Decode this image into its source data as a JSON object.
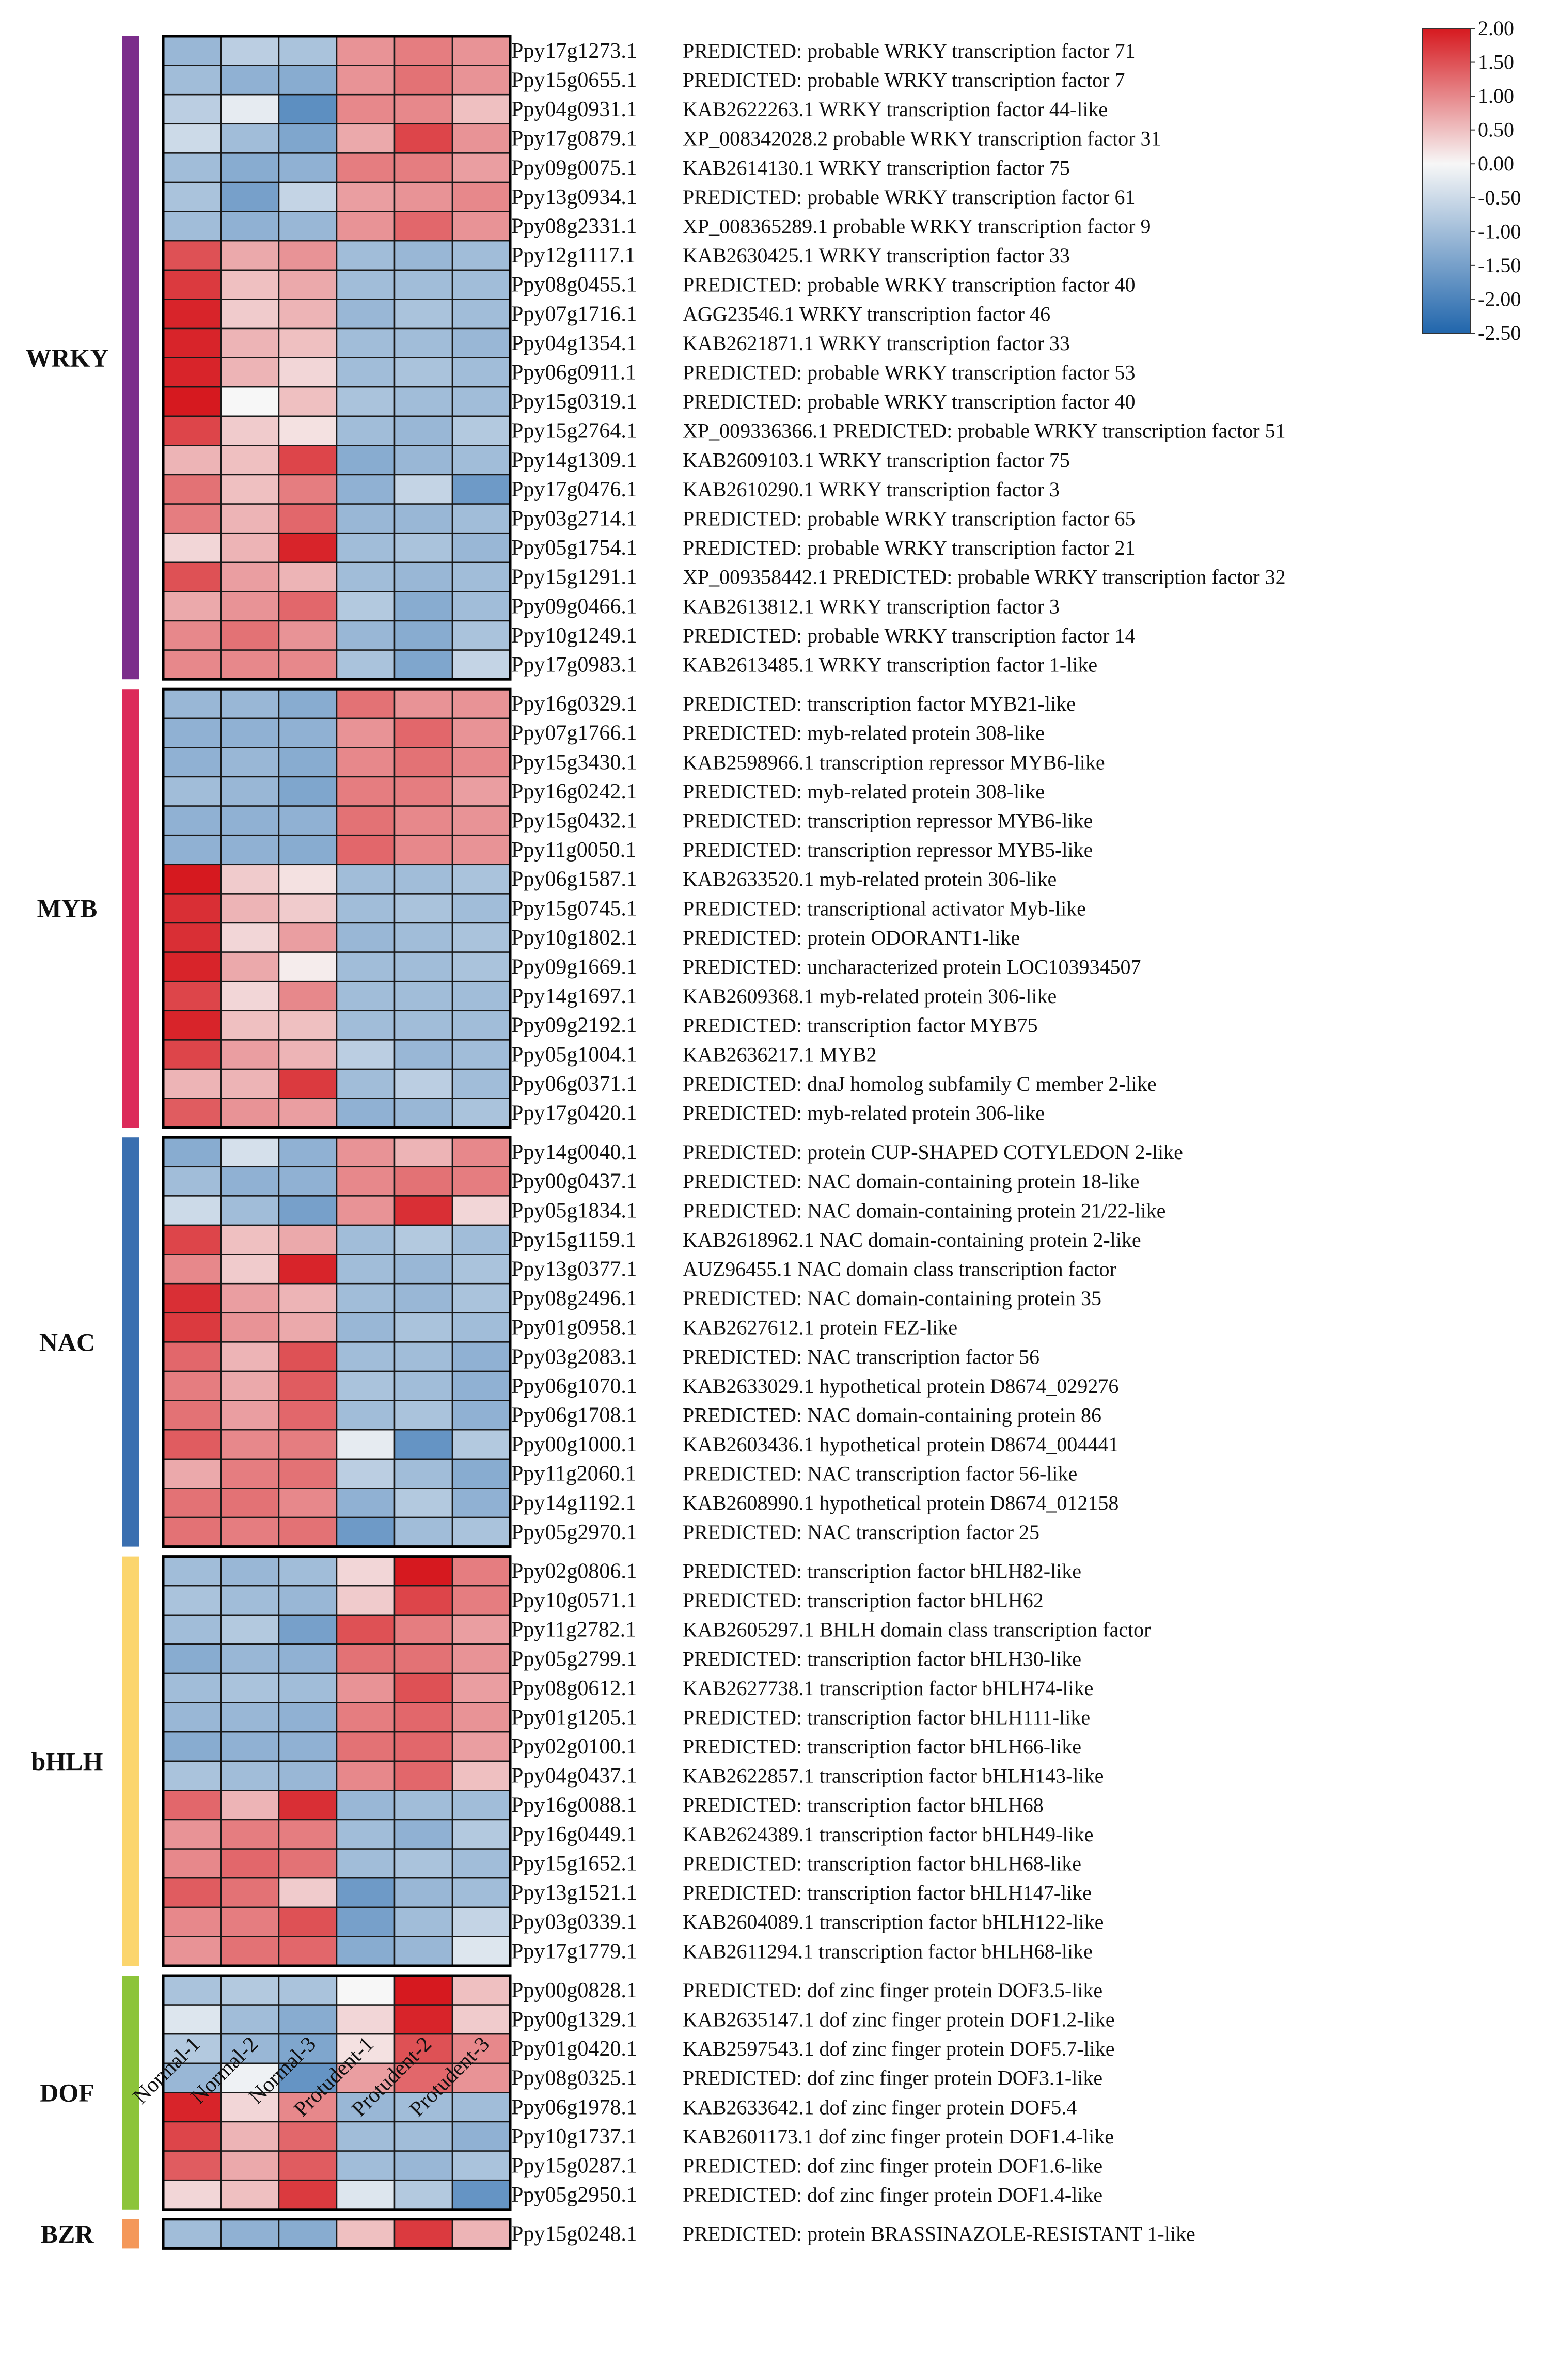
{
  "chart_data": {
    "type": "heatmap",
    "title": "",
    "columns": [
      "Normal-1",
      "Normal-2",
      "Normal-3",
      "Protudent-1",
      "Protudent-2",
      "Protudent-3"
    ],
    "colorbar": {
      "min": -2.5,
      "max": 2.0,
      "ticks": [
        "2.00",
        "1.50",
        "1.00",
        "0.50",
        "0.00",
        "-0.50",
        "-1.00",
        "-1.50",
        "-2.00",
        "-2.50"
      ],
      "colors": {
        "low": "#2166ac",
        "mid": "#f7f7f7",
        "high": "#d6191f"
      }
    },
    "families": [
      {
        "name": "WRKY",
        "color": "#7b2d8b",
        "start": 0,
        "count": 22
      },
      {
        "name": "MYB",
        "color": "#dc2a5a",
        "start": 22,
        "count": 15
      },
      {
        "name": "NAC",
        "color": "#3a6fb0",
        "start": 37,
        "count": 14
      },
      {
        "name": "bHLH",
        "color": "#fbd56d",
        "start": 51,
        "count": 14
      },
      {
        "name": "DOF",
        "color": "#8cc43a",
        "start": 65,
        "count": 8
      },
      {
        "name": "BZR",
        "color": "#f4985a",
        "start": 73,
        "count": 1
      }
    ],
    "rows": [
      {
        "id": "Ppy17g1273.1",
        "desc": "PREDICTED: probable WRKY transcription factor 71",
        "values": [
          -1.1,
          -0.7,
          -0.9,
          0.9,
          1.1,
          0.9
        ]
      },
      {
        "id": "Ppy15g0655.1",
        "desc": "PREDICTED: probable WRKY transcription factor 7",
        "values": [
          -1.0,
          -1.2,
          -1.3,
          0.9,
          1.2,
          0.9
        ]
      },
      {
        "id": "Ppy04g0931.1",
        "desc": "KAB2622263.1 WRKY transcription factor 44-like",
        "values": [
          -0.7,
          -0.2,
          -1.8,
          1.0,
          1.0,
          0.5
        ]
      },
      {
        "id": "Ppy17g0879.1",
        "desc": "XP_008342028.2 probable WRKY transcription factor 31",
        "values": [
          -0.5,
          -1.0,
          -1.4,
          0.7,
          1.6,
          0.9
        ]
      },
      {
        "id": "Ppy09g0075.1",
        "desc": "KAB2614130.1 WRKY transcription factor 75",
        "values": [
          -1.0,
          -1.3,
          -1.2,
          1.1,
          1.1,
          0.8
        ]
      },
      {
        "id": "Ppy13g0934.1",
        "desc": "PREDICTED: probable WRKY transcription factor 61",
        "values": [
          -0.9,
          -1.5,
          -0.6,
          0.8,
          0.9,
          1.0
        ]
      },
      {
        "id": "Ppy08g2331.1",
        "desc": "XP_008365289.1 probable WRKY transcription factor 9",
        "values": [
          -1.0,
          -1.2,
          -1.1,
          0.9,
          1.3,
          0.9
        ]
      },
      {
        "id": "Ppy12g1117.1",
        "desc": "KAB2630425.1 WRKY transcription factor 33",
        "values": [
          1.5,
          0.7,
          0.9,
          -1.0,
          -1.1,
          -1.0
        ]
      },
      {
        "id": "Ppy08g0455.1",
        "desc": "PREDICTED: probable WRKY transcription factor 40",
        "values": [
          1.7,
          0.5,
          0.7,
          -1.0,
          -1.0,
          -1.0
        ]
      },
      {
        "id": "Ppy07g1716.1",
        "desc": "AGG23546.1 WRKY transcription factor 46",
        "values": [
          1.9,
          0.4,
          0.6,
          -1.1,
          -0.9,
          -1.0
        ]
      },
      {
        "id": "Ppy04g1354.1",
        "desc": "KAB2621871.1 WRKY transcription factor 33",
        "values": [
          1.9,
          0.6,
          0.5,
          -1.0,
          -1.0,
          -1.1
        ]
      },
      {
        "id": "Ppy06g0911.1",
        "desc": "PREDICTED: probable WRKY transcription factor 53",
        "values": [
          1.9,
          0.6,
          0.3,
          -1.0,
          -0.9,
          -1.0
        ]
      },
      {
        "id": "Ppy15g0319.1",
        "desc": "PREDICTED: probable WRKY transcription factor 40",
        "values": [
          2.0,
          0.0,
          0.5,
          -0.9,
          -1.0,
          -1.0
        ]
      },
      {
        "id": "Ppy15g2764.1",
        "desc": "XP_009336366.1 PREDICTED: probable WRKY transcription factor 51",
        "values": [
          1.6,
          0.4,
          0.2,
          -1.0,
          -1.1,
          -0.8
        ]
      },
      {
        "id": "Ppy14g1309.1",
        "desc": "KAB2609103.1 WRKY transcription factor 75",
        "values": [
          0.6,
          0.5,
          1.6,
          -1.3,
          -1.1,
          -1.0
        ]
      },
      {
        "id": "Ppy17g0476.1",
        "desc": "KAB2610290.1 WRKY transcription factor 3",
        "values": [
          1.2,
          0.5,
          1.1,
          -1.2,
          -0.6,
          -1.6
        ]
      },
      {
        "id": "Ppy03g2714.1",
        "desc": "PREDICTED: probable WRKY transcription factor 65",
        "values": [
          1.1,
          0.6,
          1.3,
          -1.1,
          -1.1,
          -1.0
        ]
      },
      {
        "id": "Ppy05g1754.1",
        "desc": "PREDICTED: probable WRKY transcription factor 21",
        "values": [
          0.3,
          0.6,
          1.9,
          -1.0,
          -0.9,
          -1.1
        ]
      },
      {
        "id": "Ppy15g1291.1",
        "desc": "XP_009358442.1 PREDICTED: probable WRKY transcription factor 32",
        "values": [
          1.5,
          0.8,
          0.6,
          -1.0,
          -1.1,
          -1.0
        ]
      },
      {
        "id": "Ppy09g0466.1",
        "desc": "KAB2613812.1 WRKY transcription factor 3",
        "values": [
          0.7,
          0.9,
          1.3,
          -0.8,
          -1.3,
          -1.0
        ]
      },
      {
        "id": "Ppy10g1249.1",
        "desc": "PREDICTED: probable WRKY transcription factor 14",
        "values": [
          1.0,
          1.2,
          0.9,
          -1.1,
          -1.3,
          -0.9
        ]
      },
      {
        "id": "Ppy17g0983.1",
        "desc": "KAB2613485.1 WRKY transcription factor 1-like",
        "values": [
          1.0,
          1.0,
          1.0,
          -0.9,
          -1.4,
          -0.6
        ]
      },
      {
        "id": "Ppy16g0329.1",
        "desc": "PREDICTED: transcription factor MYB21-like",
        "values": [
          -1.1,
          -1.1,
          -1.3,
          1.2,
          0.9,
          0.9
        ]
      },
      {
        "id": "Ppy07g1766.1",
        "desc": "PREDICTED: myb-related protein 308-like",
        "values": [
          -1.2,
          -1.2,
          -1.2,
          0.9,
          1.3,
          0.9
        ]
      },
      {
        "id": "Ppy15g3430.1",
        "desc": "KAB2598966.1 transcription repressor MYB6-like",
        "values": [
          -1.2,
          -1.1,
          -1.3,
          1.0,
          1.2,
          1.0
        ]
      },
      {
        "id": "Ppy16g0242.1",
        "desc": "PREDICTED: myb-related protein 308-like",
        "values": [
          -1.0,
          -1.1,
          -1.4,
          1.1,
          1.1,
          0.8
        ]
      },
      {
        "id": "Ppy15g0432.1",
        "desc": "PREDICTED: transcription repressor MYB6-like",
        "values": [
          -1.2,
          -1.2,
          -1.2,
          1.2,
          1.0,
          0.9
        ]
      },
      {
        "id": "Ppy11g0050.1",
        "desc": "PREDICTED: transcription repressor MYB5-like",
        "values": [
          -1.2,
          -1.2,
          -1.3,
          1.3,
          1.0,
          0.9
        ]
      },
      {
        "id": "Ppy06g1587.1",
        "desc": "KAB2633520.1 myb-related protein 306-like",
        "values": [
          2.0,
          0.4,
          0.2,
          -1.0,
          -1.0,
          -0.9
        ]
      },
      {
        "id": "Ppy15g0745.1",
        "desc": "PREDICTED: transcriptional activator Myb-like",
        "values": [
          1.8,
          0.6,
          0.4,
          -1.0,
          -0.9,
          -1.0
        ]
      },
      {
        "id": "Ppy10g1802.1",
        "desc": "PREDICTED: protein ODORANT1-like",
        "values": [
          1.8,
          0.3,
          0.8,
          -1.1,
          -1.0,
          -0.9
        ]
      },
      {
        "id": "Ppy09g1669.1",
        "desc": "PREDICTED: uncharacterized protein LOC103934507",
        "values": [
          1.9,
          0.7,
          0.1,
          -1.0,
          -1.0,
          -0.9
        ]
      },
      {
        "id": "Ppy14g1697.1",
        "desc": "KAB2609368.1 myb-related protein 306-like",
        "values": [
          1.6,
          0.3,
          1.0,
          -1.0,
          -1.0,
          -1.0
        ]
      },
      {
        "id": "Ppy09g2192.1",
        "desc": "PREDICTED: transcription factor MYB75",
        "values": [
          1.9,
          0.5,
          0.5,
          -1.0,
          -1.0,
          -1.0
        ]
      },
      {
        "id": "Ppy05g1004.1",
        "desc": "KAB2636217.1 MYB2",
        "values": [
          1.6,
          0.8,
          0.6,
          -0.7,
          -1.1,
          -1.0
        ]
      },
      {
        "id": "Ppy06g0371.1",
        "desc": "PREDICTED: dnaJ homolog subfamily C member 2-like",
        "values": [
          0.6,
          0.6,
          1.7,
          -1.0,
          -0.7,
          -1.0
        ]
      },
      {
        "id": "Ppy17g0420.1",
        "desc": "PREDICTED: myb-related protein 306-like",
        "values": [
          1.4,
          0.9,
          0.8,
          -1.2,
          -1.1,
          -0.9
        ]
      },
      {
        "id": "Ppy14g0040.1",
        "desc": "PREDICTED: protein CUP-SHAPED COTYLEDON 2-like",
        "values": [
          -1.3,
          -0.4,
          -1.2,
          0.9,
          0.6,
          1.0
        ]
      },
      {
        "id": "Ppy00g0437.1",
        "desc": "PREDICTED: NAC domain-containing protein 18-like",
        "values": [
          -1.0,
          -1.2,
          -1.2,
          1.0,
          1.2,
          1.1
        ]
      },
      {
        "id": "Ppy05g1834.1",
        "desc": "PREDICTED: NAC domain-containing protein 21/22-like",
        "values": [
          -0.5,
          -1.0,
          -1.5,
          0.9,
          1.8,
          0.3
        ]
      },
      {
        "id": "Ppy15g1159.1",
        "desc": "KAB2618962.1 NAC domain-containing protein 2-like",
        "values": [
          1.6,
          0.5,
          0.7,
          -1.0,
          -0.8,
          -1.0
        ]
      },
      {
        "id": "Ppy13g0377.1",
        "desc": "AUZ96455.1 NAC domain class transcription factor",
        "values": [
          1.0,
          0.4,
          1.9,
          -1.0,
          -1.1,
          -0.9
        ]
      },
      {
        "id": "Ppy08g2496.1",
        "desc": "PREDICTED: NAC domain-containing protein 35",
        "values": [
          1.8,
          0.8,
          0.6,
          -1.0,
          -1.1,
          -0.9
        ]
      },
      {
        "id": "Ppy01g0958.1",
        "desc": "KAB2627612.1 protein FEZ-like",
        "values": [
          1.7,
          0.9,
          0.7,
          -1.1,
          -0.9,
          -1.0
        ]
      },
      {
        "id": "Ppy03g2083.1",
        "desc": "PREDICTED: NAC transcription factor 56",
        "values": [
          1.3,
          0.6,
          1.5,
          -1.0,
          -1.0,
          -1.2
        ]
      },
      {
        "id": "Ppy06g1070.1",
        "desc": "KAB2633029.1 hypothetical protein D8674_029276",
        "values": [
          1.1,
          0.7,
          1.4,
          -0.9,
          -1.0,
          -1.2
        ]
      },
      {
        "id": "Ppy06g1708.1",
        "desc": "PREDICTED: NAC domain-containing protein 86",
        "values": [
          1.2,
          0.8,
          1.3,
          -1.0,
          -0.9,
          -1.2
        ]
      },
      {
        "id": "Ppy00g1000.1",
        "desc": "KAB2603436.1 hypothetical protein D8674_004441",
        "values": [
          1.4,
          1.0,
          1.1,
          -0.2,
          -1.7,
          -0.8
        ]
      },
      {
        "id": "Ppy11g2060.1",
        "desc": "PREDICTED: NAC transcription factor 56-like",
        "values": [
          0.7,
          1.1,
          1.2,
          -0.7,
          -1.0,
          -1.3
        ]
      },
      {
        "id": "Ppy14g1192.1",
        "desc": "KAB2608990.1 hypothetical protein D8674_012158",
        "values": [
          1.2,
          1.2,
          1.0,
          -1.2,
          -0.8,
          -1.2
        ]
      },
      {
        "id": "Ppy05g2970.1",
        "desc": "PREDICTED: NAC transcription factor 25",
        "values": [
          1.2,
          1.1,
          1.2,
          -1.6,
          -1.0,
          -0.9
        ]
      },
      {
        "id": "Ppy02g0806.1",
        "desc": "PREDICTED: transcription factor bHLH82-like",
        "values": [
          -1.0,
          -1.1,
          -1.0,
          0.3,
          2.0,
          1.1
        ]
      },
      {
        "id": "Ppy10g0571.1",
        "desc": "PREDICTED: transcription factor bHLH62",
        "values": [
          -0.9,
          -1.0,
          -1.1,
          0.4,
          1.6,
          1.1
        ]
      },
      {
        "id": "Ppy11g2782.1",
        "desc": "KAB2605297.1 BHLH domain class transcription factor",
        "values": [
          -1.0,
          -0.8,
          -1.5,
          1.5,
          1.1,
          0.8
        ]
      },
      {
        "id": "Ppy05g2799.1",
        "desc": "PREDICTED: transcription factor bHLH30-like",
        "values": [
          -1.3,
          -1.1,
          -1.2,
          1.2,
          1.2,
          0.9
        ]
      },
      {
        "id": "Ppy08g0612.1",
        "desc": "KAB2627738.1 transcription factor bHLH74-like",
        "values": [
          -1.0,
          -0.9,
          -1.0,
          0.9,
          1.5,
          0.8
        ]
      },
      {
        "id": "Ppy01g1205.1",
        "desc": "PREDICTED: transcription factor bHLH111-like",
        "values": [
          -1.1,
          -1.1,
          -1.2,
          1.1,
          1.3,
          0.9
        ]
      },
      {
        "id": "Ppy02g0100.1",
        "desc": "PREDICTED: transcription factor bHLH66-like",
        "values": [
          -1.3,
          -1.2,
          -1.2,
          1.2,
          1.3,
          0.8
        ]
      },
      {
        "id": "Ppy04g0437.1",
        "desc": "KAB2622857.1 transcription factor bHLH143-like",
        "values": [
          -0.9,
          -1.0,
          -1.1,
          1.0,
          1.3,
          0.5
        ]
      },
      {
        "id": "Ppy16g0088.1",
        "desc": "PREDICTED: transcription factor bHLH68",
        "values": [
          1.3,
          0.6,
          1.8,
          -1.1,
          -1.0,
          -1.0
        ]
      },
      {
        "id": "Ppy16g0449.1",
        "desc": "KAB2624389.1 transcription factor bHLH49-like",
        "values": [
          0.9,
          1.1,
          1.1,
          -1.0,
          -1.2,
          -0.8
        ]
      },
      {
        "id": "Ppy15g1652.1",
        "desc": "PREDICTED: transcription factor bHLH68-like",
        "values": [
          1.0,
          1.3,
          1.2,
          -1.0,
          -0.9,
          -1.0
        ]
      },
      {
        "id": "Ppy13g1521.1",
        "desc": "PREDICTED: transcription factor bHLH147-like",
        "values": [
          1.4,
          1.2,
          0.4,
          -1.6,
          -1.1,
          -1.0
        ]
      },
      {
        "id": "Ppy03g0339.1",
        "desc": "KAB2604089.1 transcription factor bHLH122-like",
        "values": [
          1.0,
          1.1,
          1.5,
          -1.5,
          -1.0,
          -0.6
        ]
      },
      {
        "id": "Ppy17g1779.1",
        "desc": "KAB2611294.1 transcription factor bHLH68-like",
        "values": [
          0.9,
          1.2,
          1.3,
          -1.3,
          -1.1,
          -0.3
        ]
      },
      {
        "id": "Ppy00g0828.1",
        "desc": "PREDICTED: dof zinc finger protein DOF3.5-like",
        "values": [
          -0.9,
          -0.8,
          -0.9,
          0.0,
          2.0,
          0.5
        ]
      },
      {
        "id": "Ppy00g1329.1",
        "desc": "KAB2635147.1 dof zinc finger protein DOF1.2-like",
        "values": [
          -0.3,
          -1.0,
          -1.3,
          0.3,
          1.9,
          0.4
        ]
      },
      {
        "id": "Ppy01g0420.1",
        "desc": "KAB2597543.1 dof zinc finger protein DOF5.7-like",
        "values": [
          -0.8,
          -1.1,
          -1.4,
          0.2,
          1.5,
          1.0
        ]
      },
      {
        "id": "Ppy08g0325.1",
        "desc": "PREDICTED: dof zinc finger protein DOF3.1-like",
        "values": [
          -1.1,
          -0.1,
          -1.7,
          0.8,
          1.3,
          0.9
        ]
      },
      {
        "id": "Ppy06g1978.1",
        "desc": "KAB2633642.1 dof zinc finger protein DOF5.4",
        "values": [
          1.9,
          0.3,
          1.0,
          -1.1,
          -1.0,
          -1.0
        ]
      },
      {
        "id": "Ppy10g1737.1",
        "desc": "KAB2601173.1 dof zinc finger protein DOF1.4-like",
        "values": [
          1.6,
          0.6,
          1.3,
          -1.0,
          -1.0,
          -1.2
        ]
      },
      {
        "id": "Ppy15g0287.1",
        "desc": "PREDICTED: dof zinc finger protein DOF1.6-like",
        "values": [
          1.4,
          0.7,
          1.4,
          -1.0,
          -1.1,
          -0.9
        ]
      },
      {
        "id": "Ppy05g2950.1",
        "desc": "PREDICTED: dof zinc finger protein DOF1.4-like",
        "values": [
          0.3,
          0.5,
          1.7,
          -0.3,
          -0.8,
          -1.7
        ]
      },
      {
        "id": "Ppy15g0248.1",
        "desc": "PREDICTED: protein BRASSINAZOLE-RESISTANT 1-like",
        "values": [
          -1.0,
          -1.2,
          -1.3,
          0.5,
          1.7,
          0.6
        ]
      }
    ]
  }
}
